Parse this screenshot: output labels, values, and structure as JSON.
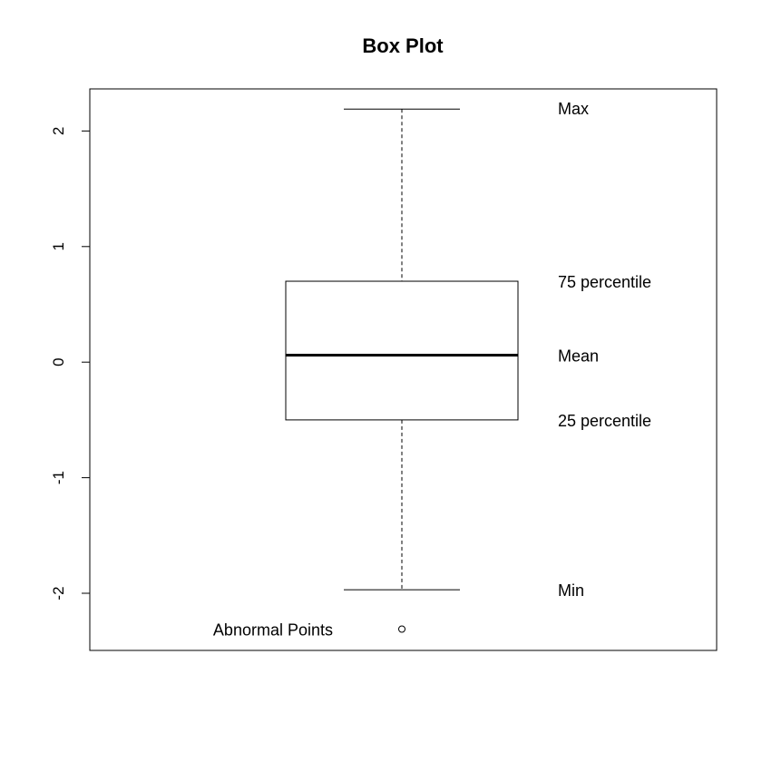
{
  "chart_data": {
    "type": "box",
    "title": "Box Plot",
    "xlabel": "",
    "ylabel": "",
    "ylim": [
      -2.5,
      2.4
    ],
    "yticks": [
      -2,
      -1,
      0,
      1,
      2
    ],
    "yticklabels": [
      "-2",
      "-1",
      "0",
      "1",
      "2"
    ],
    "grid": false,
    "box": {
      "min": -1.97,
      "q1": -0.5,
      "median": 0.06,
      "q3": 0.7,
      "max": 2.19,
      "outliers": [
        -2.31
      ]
    },
    "annotations": {
      "max": "Max",
      "q3": "75 percentile",
      "median": "Mean",
      "q1": "25 percentile",
      "min": "Min",
      "outliers": "Abnormal Points"
    }
  }
}
